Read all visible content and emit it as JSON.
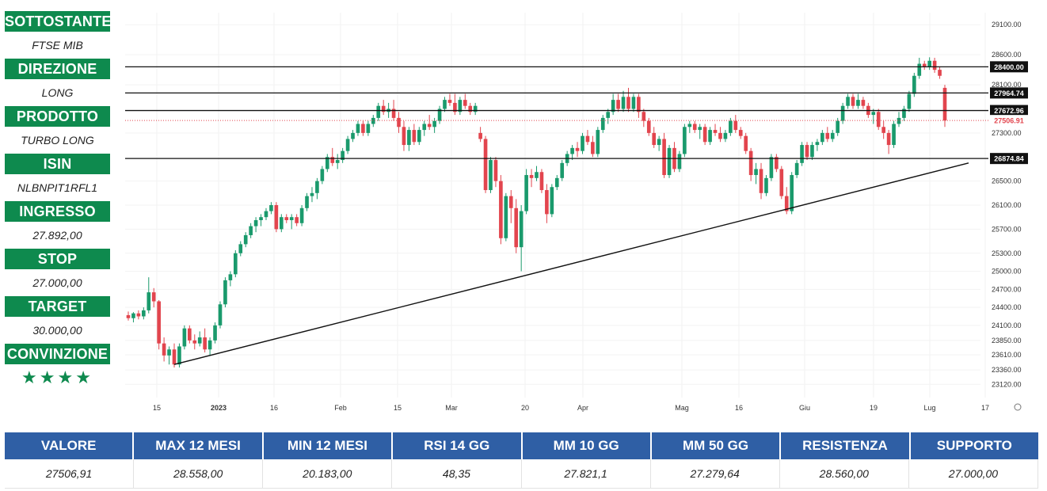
{
  "panel": [
    {
      "label": "SOTTOSTANTE",
      "value": "FTSE MIB"
    },
    {
      "label": "DIREZIONE",
      "value": "LONG"
    },
    {
      "label": "PRODOTTO",
      "value": "TURBO LONG"
    },
    {
      "label": "ISIN",
      "value": "NLBNPIT1RFL1"
    },
    {
      "label": "INGRESSO",
      "value": "27.892,00"
    },
    {
      "label": "STOP",
      "value": "27.000,00"
    },
    {
      "label": "TARGET",
      "value": "30.000,00"
    },
    {
      "label": "CONVINZIONE",
      "value": "★★★★"
    }
  ],
  "stats": {
    "headers": [
      "VALORE",
      "MAX 12 MESI",
      "MIN 12 MESI",
      "RSI 14 GG",
      "MM 10 GG",
      "MM 50 GG",
      "RESISTENZA",
      "SUPPORTO"
    ],
    "values": [
      "27506,91",
      "28.558,00",
      "20.183,00",
      "48,35",
      "27.821,1",
      "27.279,64",
      "28.560,00",
      "27.000,00"
    ]
  },
  "colors": {
    "up": "#1a9a6c",
    "down": "#e2454e",
    "panel_green": "#0e8a4e",
    "table_blue": "#2f5fa5"
  },
  "chart_data": {
    "type": "candlestick",
    "y_ticks": [
      "29100.00",
      "28600.00",
      "28100.00",
      "27300.00",
      "26500.00",
      "26100.00",
      "25700.00",
      "25300.00",
      "25000.00",
      "24700.00",
      "24400.00",
      "24100.00",
      "23850.00",
      "23610.00",
      "23360.00",
      "23120.00"
    ],
    "x_ticks": [
      "15",
      "2023",
      "16",
      "Feb",
      "15",
      "Mar",
      "20",
      "Apr",
      "Mag",
      "16",
      "Giu",
      "19",
      "Lug",
      "17"
    ],
    "ylim": [
      22900,
      29300
    ],
    "levels": [
      {
        "label": "28400.00",
        "value": 28400
      },
      {
        "label": "27964.74",
        "value": 27964.74
      },
      {
        "label": "27672.96",
        "value": 27672.96
      },
      {
        "label": "26874.84",
        "value": 26874.84
      }
    ],
    "last_price": {
      "label": "27506.91",
      "value": 27506.91
    },
    "trendline": {
      "from": {
        "date": "2022-12-19",
        "value": 23450
      },
      "to": {
        "date": "2023-07-10",
        "value": 26800
      }
    },
    "candles": [
      {
        "o": 24270,
        "h": 24330,
        "l": 24180,
        "c": 24220
      },
      {
        "o": 24220,
        "h": 24320,
        "l": 24150,
        "c": 24300
      },
      {
        "o": 24300,
        "h": 24350,
        "l": 24200,
        "c": 24250
      },
      {
        "o": 24250,
        "h": 24400,
        "l": 24200,
        "c": 24350
      },
      {
        "o": 24350,
        "h": 24900,
        "l": 24300,
        "c": 24650
      },
      {
        "o": 24650,
        "h": 24720,
        "l": 24400,
        "c": 24500
      },
      {
        "o": 24500,
        "h": 24520,
        "l": 23700,
        "c": 23800
      },
      {
        "o": 23800,
        "h": 23900,
        "l": 23500,
        "c": 23600
      },
      {
        "o": 23600,
        "h": 23750,
        "l": 23450,
        "c": 23700
      },
      {
        "o": 23700,
        "h": 23800,
        "l": 23400,
        "c": 23450
      },
      {
        "o": 23450,
        "h": 23800,
        "l": 23400,
        "c": 23750
      },
      {
        "o": 23750,
        "h": 24100,
        "l": 23700,
        "c": 24050
      },
      {
        "o": 24050,
        "h": 24100,
        "l": 23800,
        "c": 23850
      },
      {
        "o": 23850,
        "h": 23950,
        "l": 23700,
        "c": 23800
      },
      {
        "o": 23800,
        "h": 24000,
        "l": 23750,
        "c": 23900
      },
      {
        "o": 23900,
        "h": 24050,
        "l": 23650,
        "c": 23700
      },
      {
        "o": 23700,
        "h": 23900,
        "l": 23600,
        "c": 23850
      },
      {
        "o": 23850,
        "h": 24150,
        "l": 23800,
        "c": 24100
      },
      {
        "o": 24100,
        "h": 24500,
        "l": 24050,
        "c": 24450
      },
      {
        "o": 24450,
        "h": 24900,
        "l": 24400,
        "c": 24850
      },
      {
        "o": 24850,
        "h": 25000,
        "l": 24750,
        "c": 24950
      },
      {
        "o": 24950,
        "h": 25350,
        "l": 24900,
        "c": 25300
      },
      {
        "o": 25300,
        "h": 25500,
        "l": 25250,
        "c": 25450
      },
      {
        "o": 25450,
        "h": 25650,
        "l": 25400,
        "c": 25600
      },
      {
        "o": 25600,
        "h": 25800,
        "l": 25550,
        "c": 25750
      },
      {
        "o": 25750,
        "h": 25900,
        "l": 25650,
        "c": 25850
      },
      {
        "o": 25850,
        "h": 25950,
        "l": 25750,
        "c": 25900
      },
      {
        "o": 25900,
        "h": 26050,
        "l": 25850,
        "c": 26000
      },
      {
        "o": 26000,
        "h": 26150,
        "l": 25950,
        "c": 26100
      },
      {
        "o": 26100,
        "h": 26150,
        "l": 25650,
        "c": 25700
      },
      {
        "o": 25700,
        "h": 25950,
        "l": 25650,
        "c": 25900
      },
      {
        "o": 25900,
        "h": 25950,
        "l": 25800,
        "c": 25850
      },
      {
        "o": 25850,
        "h": 25950,
        "l": 25700,
        "c": 25900
      },
      {
        "o": 25900,
        "h": 25950,
        "l": 25750,
        "c": 25800
      },
      {
        "o": 25800,
        "h": 26100,
        "l": 25750,
        "c": 26050
      },
      {
        "o": 26050,
        "h": 26300,
        "l": 26000,
        "c": 26250
      },
      {
        "o": 26250,
        "h": 26400,
        "l": 26150,
        "c": 26300
      },
      {
        "o": 26300,
        "h": 26550,
        "l": 26200,
        "c": 26500
      },
      {
        "o": 26500,
        "h": 26750,
        "l": 26450,
        "c": 26700
      },
      {
        "o": 26700,
        "h": 26950,
        "l": 26650,
        "c": 26900
      },
      {
        "o": 26900,
        "h": 27050,
        "l": 26750,
        "c": 26800
      },
      {
        "o": 26800,
        "h": 26950,
        "l": 26700,
        "c": 26850
      },
      {
        "o": 26850,
        "h": 27050,
        "l": 26800,
        "c": 27000
      },
      {
        "o": 27000,
        "h": 27250,
        "l": 26950,
        "c": 27200
      },
      {
        "o": 27200,
        "h": 27350,
        "l": 27150,
        "c": 27300
      },
      {
        "o": 27300,
        "h": 27500,
        "l": 27250,
        "c": 27450
      },
      {
        "o": 27450,
        "h": 27500,
        "l": 27250,
        "c": 27300
      },
      {
        "o": 27300,
        "h": 27500,
        "l": 27250,
        "c": 27450
      },
      {
        "o": 27450,
        "h": 27600,
        "l": 27400,
        "c": 27550
      },
      {
        "o": 27550,
        "h": 27800,
        "l": 27500,
        "c": 27750
      },
      {
        "o": 27750,
        "h": 27850,
        "l": 27600,
        "c": 27650
      },
      {
        "o": 27650,
        "h": 27800,
        "l": 27550,
        "c": 27700
      },
      {
        "o": 27700,
        "h": 27850,
        "l": 27500,
        "c": 27550
      },
      {
        "o": 27550,
        "h": 27650,
        "l": 27300,
        "c": 27400
      },
      {
        "o": 27400,
        "h": 27500,
        "l": 27000,
        "c": 27100
      },
      {
        "o": 27100,
        "h": 27400,
        "l": 27000,
        "c": 27350
      },
      {
        "o": 27350,
        "h": 27450,
        "l": 27100,
        "c": 27150
      },
      {
        "o": 27150,
        "h": 27400,
        "l": 27100,
        "c": 27350
      },
      {
        "o": 27350,
        "h": 27500,
        "l": 27250,
        "c": 27450
      },
      {
        "o": 27450,
        "h": 27600,
        "l": 27350,
        "c": 27400
      },
      {
        "o": 27400,
        "h": 27550,
        "l": 27300,
        "c": 27500
      },
      {
        "o": 27500,
        "h": 27750,
        "l": 27450,
        "c": 27700
      },
      {
        "o": 27700,
        "h": 27900,
        "l": 27650,
        "c": 27850
      },
      {
        "o": 27850,
        "h": 27950,
        "l": 27750,
        "c": 27800
      },
      {
        "o": 27800,
        "h": 27950,
        "l": 27600,
        "c": 27650
      },
      {
        "o": 27650,
        "h": 27900,
        "l": 27600,
        "c": 27850
      },
      {
        "o": 27850,
        "h": 27950,
        "l": 27700,
        "c": 27750
      },
      {
        "o": 27750,
        "h": 27800,
        "l": 27600,
        "c": 27650
      },
      {
        "o": 27650,
        "h": 27800,
        "l": 27600,
        "c": 27750
      },
      {
        "o": 27300,
        "h": 27400,
        "l": 27150,
        "c": 27200
      },
      {
        "o": 27200,
        "h": 27250,
        "l": 26300,
        "c": 26350
      },
      {
        "o": 26350,
        "h": 26900,
        "l": 26300,
        "c": 26850
      },
      {
        "o": 26850,
        "h": 26900,
        "l": 26400,
        "c": 26500
      },
      {
        "o": 26500,
        "h": 26600,
        "l": 25450,
        "c": 25550
      },
      {
        "o": 25550,
        "h": 26300,
        "l": 25500,
        "c": 26250
      },
      {
        "o": 26250,
        "h": 26350,
        "l": 25800,
        "c": 26050
      },
      {
        "o": 26050,
        "h": 26200,
        "l": 25300,
        "c": 25400
      },
      {
        "o": 25400,
        "h": 26100,
        "l": 25000,
        "c": 26000
      },
      {
        "o": 26000,
        "h": 26700,
        "l": 25950,
        "c": 26600
      },
      {
        "o": 26600,
        "h": 26700,
        "l": 26400,
        "c": 26550
      },
      {
        "o": 26550,
        "h": 26750,
        "l": 26500,
        "c": 26650
      },
      {
        "o": 26650,
        "h": 26700,
        "l": 26300,
        "c": 26350
      },
      {
        "o": 26350,
        "h": 26450,
        "l": 25800,
        "c": 25950
      },
      {
        "o": 25950,
        "h": 26450,
        "l": 25900,
        "c": 26400
      },
      {
        "o": 26400,
        "h": 26600,
        "l": 26350,
        "c": 26550
      },
      {
        "o": 26550,
        "h": 26850,
        "l": 26500,
        "c": 26800
      },
      {
        "o": 26800,
        "h": 27000,
        "l": 26750,
        "c": 26950
      },
      {
        "o": 26950,
        "h": 27100,
        "l": 26850,
        "c": 27050
      },
      {
        "o": 27050,
        "h": 27150,
        "l": 26900,
        "c": 27000
      },
      {
        "o": 27000,
        "h": 27300,
        "l": 26950,
        "c": 27250
      },
      {
        "o": 27250,
        "h": 27350,
        "l": 27100,
        "c": 27150
      },
      {
        "o": 27150,
        "h": 27250,
        "l": 26900,
        "c": 26950
      },
      {
        "o": 26950,
        "h": 27400,
        "l": 26900,
        "c": 27350
      },
      {
        "o": 27350,
        "h": 27600,
        "l": 27300,
        "c": 27550
      },
      {
        "o": 27550,
        "h": 27700,
        "l": 27450,
        "c": 27650
      },
      {
        "o": 27650,
        "h": 27950,
        "l": 27600,
        "c": 27850
      },
      {
        "o": 27850,
        "h": 27950,
        "l": 27650,
        "c": 27700
      },
      {
        "o": 27700,
        "h": 28000,
        "l": 27650,
        "c": 27900
      },
      {
        "o": 27900,
        "h": 28050,
        "l": 27650,
        "c": 27700
      },
      {
        "o": 27700,
        "h": 27950,
        "l": 27650,
        "c": 27900
      },
      {
        "o": 27900,
        "h": 27950,
        "l": 27550,
        "c": 27650
      },
      {
        "o": 27650,
        "h": 27700,
        "l": 27400,
        "c": 27500
      },
      {
        "o": 27500,
        "h": 27550,
        "l": 27250,
        "c": 27300
      },
      {
        "o": 27300,
        "h": 27400,
        "l": 27050,
        "c": 27100
      },
      {
        "o": 27100,
        "h": 27250,
        "l": 27000,
        "c": 27200
      },
      {
        "o": 27200,
        "h": 27300,
        "l": 26550,
        "c": 26600
      },
      {
        "o": 26600,
        "h": 27100,
        "l": 26550,
        "c": 27050
      },
      {
        "o": 27050,
        "h": 27150,
        "l": 26650,
        "c": 26700
      },
      {
        "o": 26700,
        "h": 27000,
        "l": 26650,
        "c": 26950
      },
      {
        "o": 26950,
        "h": 27450,
        "l": 26900,
        "c": 27400
      },
      {
        "o": 27400,
        "h": 27500,
        "l": 27300,
        "c": 27450
      },
      {
        "o": 27450,
        "h": 27500,
        "l": 27300,
        "c": 27350
      },
      {
        "o": 27350,
        "h": 27450,
        "l": 27200,
        "c": 27400
      },
      {
        "o": 27400,
        "h": 27450,
        "l": 27100,
        "c": 27150
      },
      {
        "o": 27150,
        "h": 27400,
        "l": 27100,
        "c": 27350
      },
      {
        "o": 27350,
        "h": 27450,
        "l": 27250,
        "c": 27300
      },
      {
        "o": 27300,
        "h": 27400,
        "l": 27150,
        "c": 27200
      },
      {
        "o": 27200,
        "h": 27350,
        "l": 27150,
        "c": 27300
      },
      {
        "o": 27300,
        "h": 27550,
        "l": 27250,
        "c": 27500
      },
      {
        "o": 27500,
        "h": 27600,
        "l": 27300,
        "c": 27350
      },
      {
        "o": 27350,
        "h": 27400,
        "l": 27200,
        "c": 27250
      },
      {
        "o": 27250,
        "h": 27300,
        "l": 26950,
        "c": 27000
      },
      {
        "o": 27000,
        "h": 27050,
        "l": 26500,
        "c": 26600
      },
      {
        "o": 26600,
        "h": 26800,
        "l": 26450,
        "c": 26700
      },
      {
        "o": 26700,
        "h": 26800,
        "l": 26200,
        "c": 26300
      },
      {
        "o": 26300,
        "h": 26600,
        "l": 26250,
        "c": 26550
      },
      {
        "o": 26550,
        "h": 26950,
        "l": 26500,
        "c": 26900
      },
      {
        "o": 26900,
        "h": 26950,
        "l": 26650,
        "c": 26700
      },
      {
        "o": 26700,
        "h": 26750,
        "l": 26200,
        "c": 26250
      },
      {
        "o": 26250,
        "h": 26400,
        "l": 25950,
        "c": 26000
      },
      {
        "o": 26000,
        "h": 26650,
        "l": 25950,
        "c": 26600
      },
      {
        "o": 26600,
        "h": 26850,
        "l": 26550,
        "c": 26800
      },
      {
        "o": 26800,
        "h": 27150,
        "l": 26750,
        "c": 27100
      },
      {
        "o": 27100,
        "h": 27150,
        "l": 26850,
        "c": 26900
      },
      {
        "o": 26900,
        "h": 27150,
        "l": 26850,
        "c": 27100
      },
      {
        "o": 27100,
        "h": 27200,
        "l": 27000,
        "c": 27150
      },
      {
        "o": 27150,
        "h": 27350,
        "l": 27100,
        "c": 27300
      },
      {
        "o": 27300,
        "h": 27400,
        "l": 27150,
        "c": 27200
      },
      {
        "o": 27200,
        "h": 27350,
        "l": 27150,
        "c": 27300
      },
      {
        "o": 27300,
        "h": 27550,
        "l": 27250,
        "c": 27500
      },
      {
        "o": 27500,
        "h": 27800,
        "l": 27450,
        "c": 27750
      },
      {
        "o": 27750,
        "h": 27950,
        "l": 27700,
        "c": 27900
      },
      {
        "o": 27900,
        "h": 27950,
        "l": 27700,
        "c": 27750
      },
      {
        "o": 27750,
        "h": 27950,
        "l": 27700,
        "c": 27850
      },
      {
        "o": 27850,
        "h": 27900,
        "l": 27700,
        "c": 27750
      },
      {
        "o": 27750,
        "h": 27800,
        "l": 27550,
        "c": 27600
      },
      {
        "o": 27600,
        "h": 27700,
        "l": 27450,
        "c": 27650
      },
      {
        "o": 27650,
        "h": 27700,
        "l": 27350,
        "c": 27400
      },
      {
        "o": 27400,
        "h": 27500,
        "l": 27200,
        "c": 27300
      },
      {
        "o": 27300,
        "h": 27350,
        "l": 26950,
        "c": 27100
      },
      {
        "o": 27100,
        "h": 27500,
        "l": 27050,
        "c": 27450
      },
      {
        "o": 27450,
        "h": 27650,
        "l": 27400,
        "c": 27550
      },
      {
        "o": 27550,
        "h": 27750,
        "l": 27500,
        "c": 27700
      },
      {
        "o": 27700,
        "h": 28000,
        "l": 27650,
        "c": 27950
      },
      {
        "o": 27950,
        "h": 28300,
        "l": 27900,
        "c": 28250
      },
      {
        "o": 28250,
        "h": 28550,
        "l": 28200,
        "c": 28450
      },
      {
        "o": 28450,
        "h": 28500,
        "l": 28350,
        "c": 28400
      },
      {
        "o": 28400,
        "h": 28558,
        "l": 28350,
        "c": 28500
      },
      {
        "o": 28500,
        "h": 28550,
        "l": 28300,
        "c": 28350
      },
      {
        "o": 28350,
        "h": 28400,
        "l": 28200,
        "c": 28250
      },
      {
        "o": 28050,
        "h": 28100,
        "l": 27400,
        "c": 27506.91
      }
    ]
  }
}
